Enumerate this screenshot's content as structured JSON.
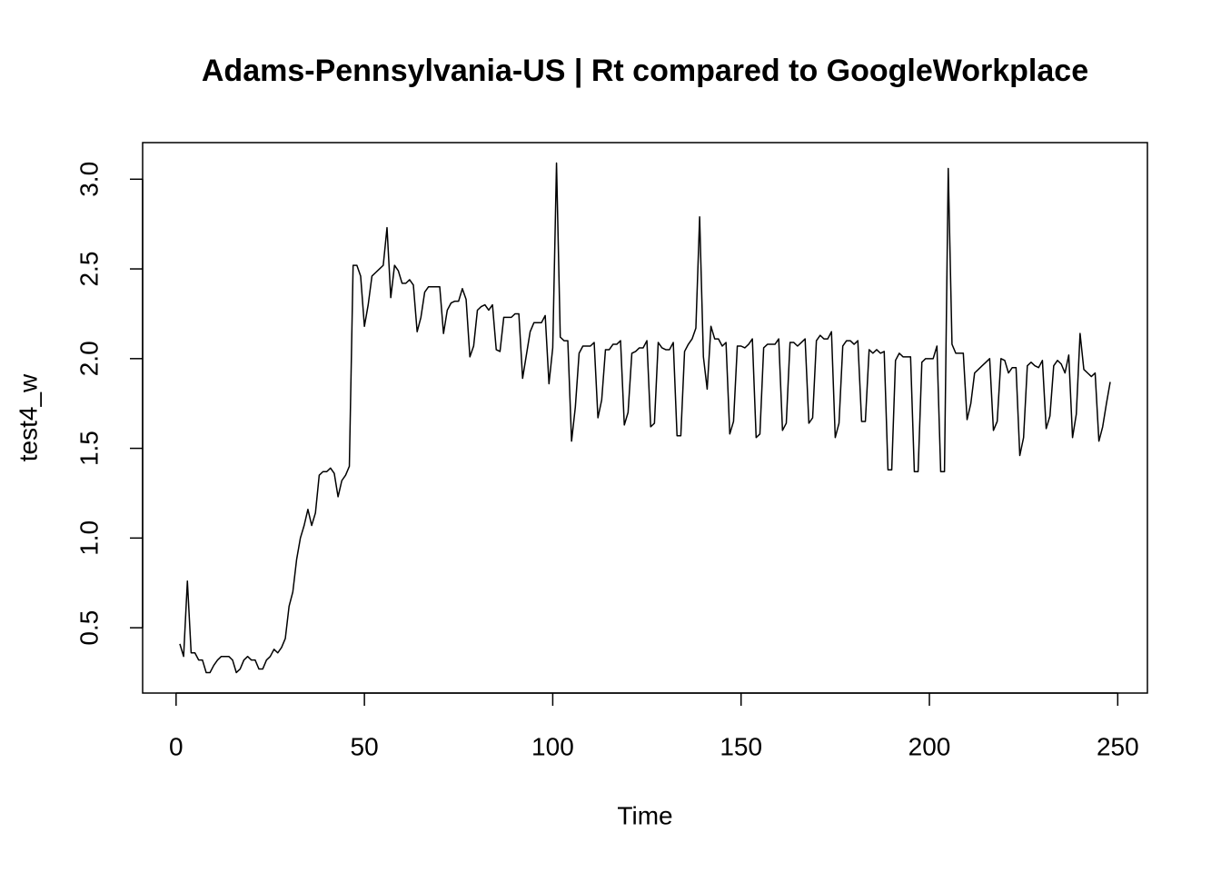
{
  "chart_data": {
    "type": "line",
    "title": "Adams-Pennsylvania-US | Rt compared to GoogleWorkplace",
    "x_label": "Time",
    "y_label": "test4_w",
    "xlim": [
      -8.88,
      257.88
    ],
    "ylim": [
      0.136,
      3.204
    ],
    "xticks": [
      0,
      50,
      100,
      150,
      200,
      250
    ],
    "yticks": [
      0.5,
      {
        "value": 1.0,
        "label": "1.0"
      },
      1.5,
      {
        "value": 2.0,
        "label": "2.0"
      },
      2.5,
      {
        "value": 3.0,
        "label": "3.0"
      }
    ],
    "x": [
      1,
      2,
      3,
      4,
      5,
      6,
      7,
      8,
      9,
      10,
      11,
      12,
      13,
      14,
      15,
      16,
      17,
      18,
      19,
      20,
      21,
      22,
      23,
      24,
      25,
      26,
      27,
      28,
      29,
      30,
      31,
      32,
      33,
      34,
      35,
      36,
      37,
      38,
      39,
      40,
      41,
      42,
      43,
      44,
      45,
      46,
      47,
      48,
      49,
      50,
      51,
      52,
      53,
      54,
      55,
      56,
      57,
      58,
      59,
      60,
      61,
      62,
      63,
      64,
      65,
      66,
      67,
      68,
      69,
      70,
      71,
      72,
      73,
      74,
      75,
      76,
      77,
      78,
      79,
      80,
      81,
      82,
      83,
      84,
      85,
      86,
      87,
      88,
      89,
      90,
      91,
      92,
      93,
      94,
      95,
      96,
      97,
      98,
      99,
      100,
      101,
      102,
      103,
      104,
      105,
      106,
      107,
      108,
      109,
      110,
      111,
      112,
      113,
      114,
      115,
      116,
      117,
      118,
      119,
      120,
      121,
      122,
      123,
      124,
      125,
      126,
      127,
      128,
      129,
      130,
      131,
      132,
      133,
      134,
      135,
      136,
      137,
      138,
      139,
      140,
      141,
      142,
      143,
      144,
      145,
      146,
      147,
      148,
      149,
      150,
      151,
      152,
      153,
      154,
      155,
      156,
      157,
      158,
      159,
      160,
      161,
      162,
      163,
      164,
      165,
      166,
      167,
      168,
      169,
      170,
      171,
      172,
      173,
      174,
      175,
      176,
      177,
      178,
      179,
      180,
      181,
      182,
      183,
      184,
      185,
      186,
      187,
      188,
      189,
      190,
      191,
      192,
      193,
      194,
      195,
      196,
      197,
      198,
      199,
      200,
      201,
      202,
      203,
      204,
      205,
      206,
      207,
      208,
      209,
      210,
      211,
      212,
      213,
      214,
      215,
      216,
      217,
      218,
      219,
      220,
      221,
      222,
      223,
      224,
      225,
      226,
      227,
      228,
      229,
      230,
      231,
      232,
      233,
      234,
      235,
      236,
      237,
      238,
      239,
      240,
      241,
      242,
      243,
      244,
      245,
      246,
      247,
      248
    ],
    "series": [
      {
        "color": "#000000",
        "values": [
          0.41,
          0.34,
          0.76,
          0.36,
          0.36,
          0.32,
          0.32,
          0.25,
          0.25,
          0.29,
          0.32,
          0.34,
          0.34,
          0.34,
          0.32,
          0.25,
          0.27,
          0.32,
          0.34,
          0.32,
          0.32,
          0.27,
          0.27,
          0.32,
          0.34,
          0.38,
          0.36,
          0.39,
          0.44,
          0.62,
          0.7,
          0.88,
          1.0,
          1.07,
          1.16,
          1.07,
          1.14,
          1.35,
          1.37,
          1.37,
          1.39,
          1.36,
          1.23,
          1.32,
          1.35,
          1.4,
          2.52,
          2.52,
          2.46,
          2.18,
          2.3,
          2.46,
          2.48,
          2.5,
          2.52,
          2.73,
          2.34,
          2.52,
          2.49,
          2.42,
          2.42,
          2.44,
          2.41,
          2.15,
          2.23,
          2.37,
          2.4,
          2.4,
          2.4,
          2.4,
          2.14,
          2.27,
          2.31,
          2.32,
          2.32,
          2.39,
          2.33,
          2.01,
          2.07,
          2.27,
          2.29,
          2.3,
          2.27,
          2.3,
          2.05,
          2.04,
          2.23,
          2.23,
          2.23,
          2.25,
          2.25,
          1.89,
          2.02,
          2.15,
          2.2,
          2.2,
          2.2,
          2.24,
          1.86,
          2.06,
          3.09,
          2.12,
          2.1,
          2.1,
          1.54,
          1.73,
          2.03,
          2.07,
          2.07,
          2.07,
          2.09,
          1.67,
          1.77,
          2.05,
          2.05,
          2.08,
          2.08,
          2.1,
          1.63,
          1.7,
          2.03,
          2.04,
          2.06,
          2.06,
          2.1,
          1.62,
          1.64,
          2.09,
          2.06,
          2.05,
          2.05,
          2.09,
          1.57,
          1.57,
          2.04,
          2.08,
          2.11,
          2.17,
          2.79,
          2.01,
          1.83,
          2.18,
          2.11,
          2.11,
          2.07,
          2.09,
          1.58,
          1.65,
          2.07,
          2.07,
          2.06,
          2.08,
          2.11,
          1.56,
          1.58,
          2.06,
          2.08,
          2.08,
          2.08,
          2.11,
          1.6,
          1.64,
          2.09,
          2.09,
          2.07,
          2.09,
          2.11,
          1.64,
          1.67,
          2.1,
          2.13,
          2.11,
          2.11,
          2.15,
          1.56,
          1.64,
          2.07,
          2.1,
          2.1,
          2.08,
          2.1,
          1.65,
          1.65,
          2.05,
          2.03,
          2.05,
          2.03,
          2.04,
          1.38,
          1.38,
          1.99,
          2.03,
          2.01,
          2.01,
          2.01,
          1.37,
          1.37,
          1.98,
          2.0,
          2.0,
          2.0,
          2.07,
          1.37,
          1.37,
          3.06,
          2.08,
          2.03,
          2.03,
          2.03,
          1.66,
          1.75,
          1.92,
          1.94,
          1.96,
          1.98,
          2.0,
          1.6,
          1.65,
          2.0,
          1.99,
          1.92,
          1.95,
          1.95,
          1.46,
          1.56,
          1.96,
          1.98,
          1.96,
          1.95,
          1.99,
          1.61,
          1.68,
          1.96,
          1.99,
          1.97,
          1.92,
          2.02,
          1.56,
          1.69,
          2.14,
          1.94,
          1.92,
          1.9,
          1.92,
          1.54,
          1.62,
          1.75,
          1.87
        ]
      }
    ]
  }
}
